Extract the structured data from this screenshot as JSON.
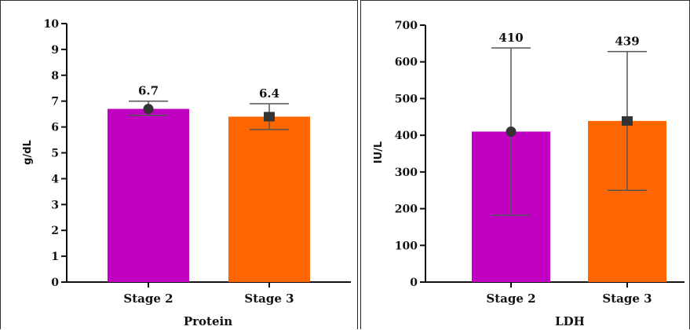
{
  "colors": {
    "stage2": "#c000c0",
    "stage3": "#ff6600",
    "axis": "#111111",
    "error": "#555555"
  },
  "chart_data": [
    {
      "type": "bar",
      "title": "",
      "xlabel": "Protein",
      "ylabel": "g/dL",
      "ylim": [
        0,
        10
      ],
      "yticks": [
        0,
        1,
        2,
        3,
        4,
        5,
        6,
        7,
        8,
        9,
        10
      ],
      "categories": [
        "Stage 2",
        "Stage 3"
      ],
      "values": [
        6.7,
        6.4
      ],
      "value_labels": [
        "6.7",
        "6.4"
      ],
      "error_bars": [
        [
          6.45,
          7.0
        ],
        [
          5.9,
          6.9
        ]
      ],
      "markers": [
        "circle",
        "square"
      ],
      "grid": false
    },
    {
      "type": "bar",
      "title": "",
      "xlabel": "LDH",
      "ylabel": "IU/L",
      "ylim": [
        0,
        700
      ],
      "yticks": [
        0,
        100,
        200,
        300,
        400,
        500,
        600,
        700
      ],
      "categories": [
        "Stage 2",
        "Stage 3"
      ],
      "values": [
        410,
        439
      ],
      "value_labels": [
        "410",
        "439"
      ],
      "error_bars": [
        [
          182,
          638
        ],
        [
          250,
          628
        ]
      ],
      "markers": [
        "circle",
        "square"
      ],
      "grid": false
    }
  ]
}
